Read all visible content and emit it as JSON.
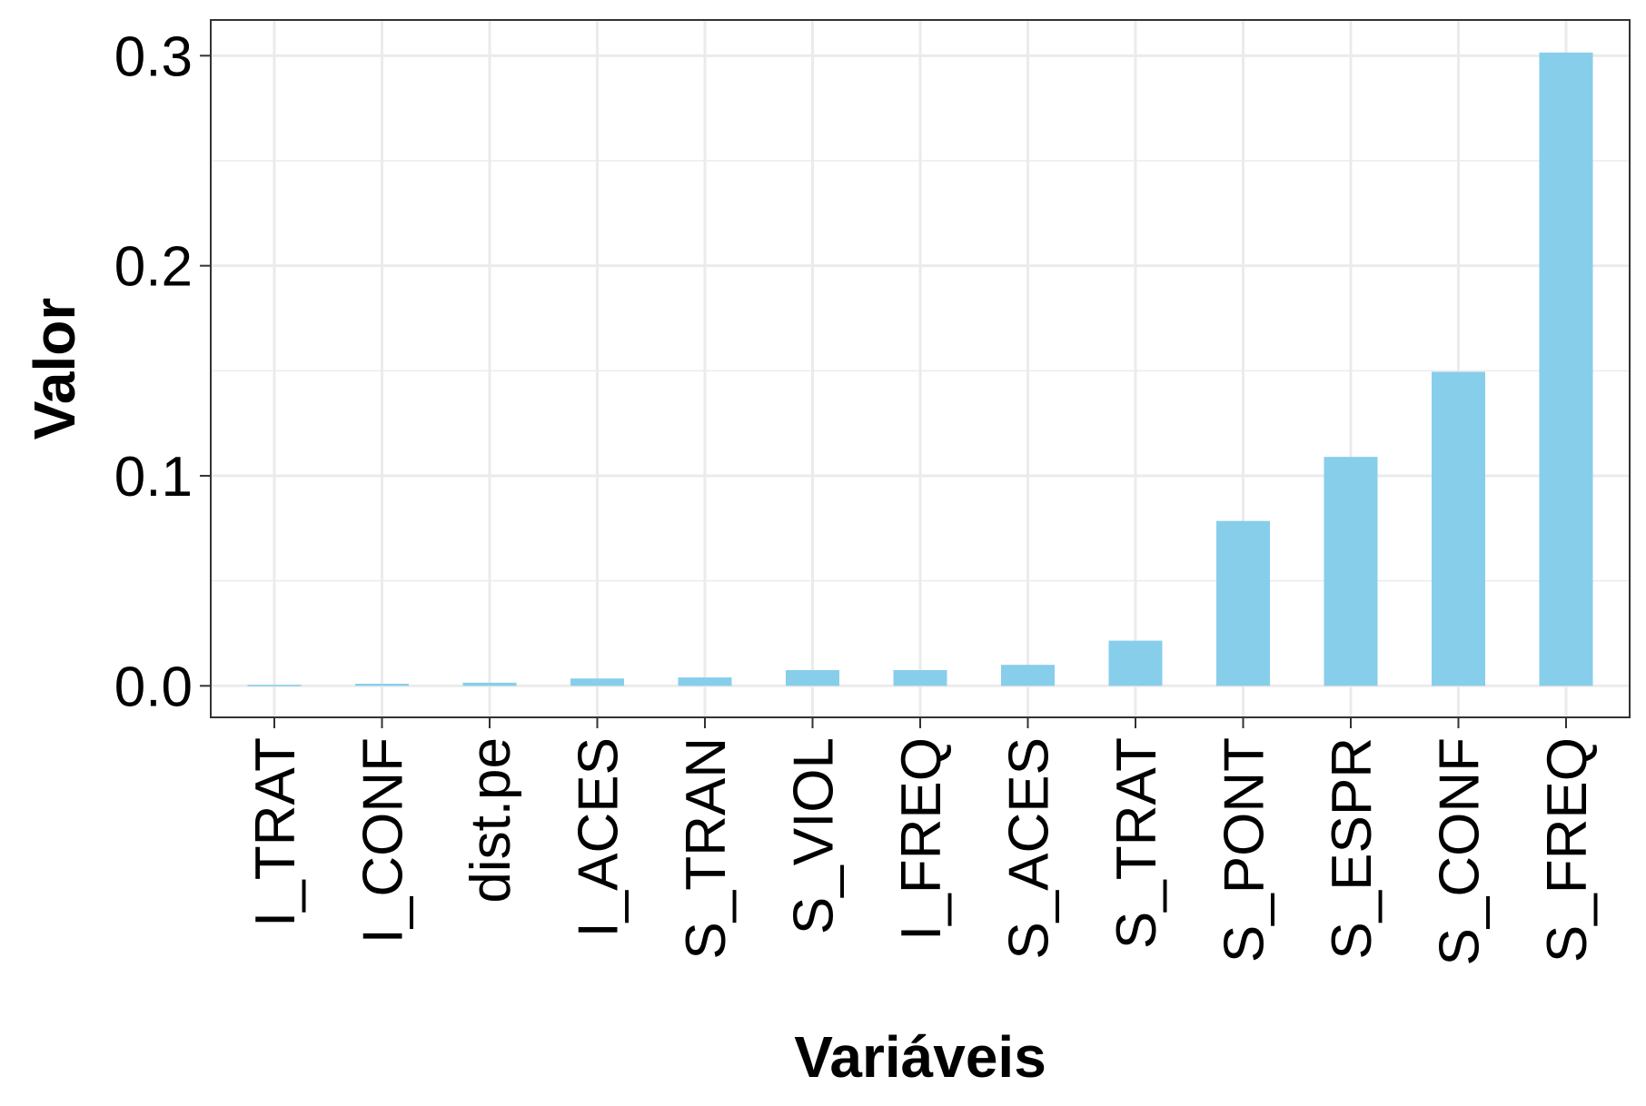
{
  "chart_data": {
    "type": "bar",
    "xlabel": "Variáveis",
    "ylabel": "Valor",
    "categories": [
      "I_TRAT",
      "I_CONF",
      "dist.pe",
      "I_ACES",
      "S_TRAN",
      "S_VIOL",
      "I_FREQ",
      "S_ACES",
      "S_TRAT",
      "S_PONT",
      "S_ESPR",
      "S_CONF",
      "S_FREQ"
    ],
    "values": [
      0.0005,
      0.001,
      0.0015,
      0.0035,
      0.004,
      0.0075,
      0.0075,
      0.01,
      0.0215,
      0.0785,
      0.109,
      0.1495,
      0.3015
    ],
    "yticks": [
      "0.0",
      "0.1",
      "0.2",
      "0.3"
    ],
    "ylim": [
      -0.015,
      0.317
    ],
    "grid": true,
    "legend": "none",
    "colors": {
      "bar": "#87CEEB",
      "grid": "#EBEBEB",
      "panel_border": "#333333"
    }
  }
}
